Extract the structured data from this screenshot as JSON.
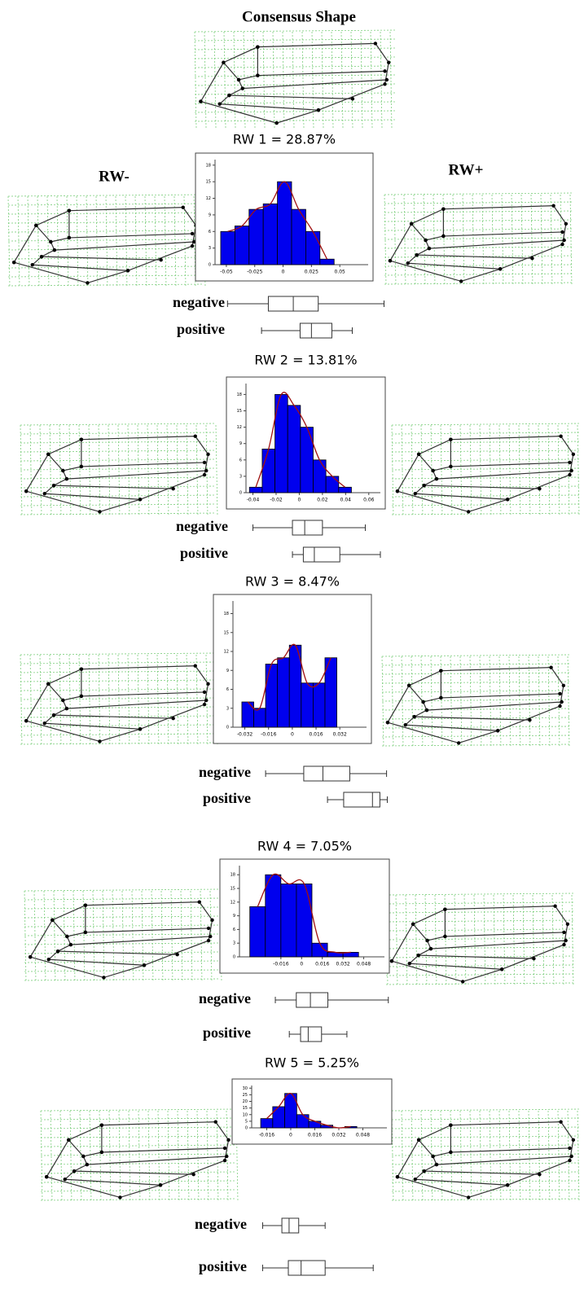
{
  "title": "Consensus Shape",
  "left_label": "RW-",
  "right_label": "RW+",
  "chart_data": [
    {
      "type": "histogram",
      "title": "RW 1 = 28.87%",
      "color": "#0000ee",
      "curve_color": "#a01010",
      "bins": [
        -0.055,
        -0.0425,
        -0.03,
        -0.0175,
        -0.005,
        0.0075,
        0.02,
        0.0325,
        0.045
      ],
      "values": [
        6,
        7,
        10,
        11,
        15,
        10,
        6,
        1
      ],
      "xlim": [
        -0.06,
        0.075
      ],
      "xticks": [
        -0.05,
        -0.025,
        0,
        0.025,
        0.05
      ],
      "ylim": [
        0,
        19
      ],
      "yticks": [
        0,
        3,
        6,
        9,
        12,
        15,
        18
      ],
      "boxplots": [
        {
          "name": "negative",
          "min": -0.049,
          "q1": -0.013,
          "median": 0.009,
          "q3": 0.031,
          "max": 0.089
        },
        {
          "name": "positive",
          "min": -0.019,
          "q1": 0.015,
          "median": 0.025,
          "q3": 0.043,
          "max": 0.061
        }
      ]
    },
    {
      "type": "histogram",
      "title": "RW 2 = 13.81%",
      "color": "#0000ee",
      "curve_color": "#a01010",
      "bins": [
        -0.043,
        -0.032,
        -0.021,
        -0.01,
        0.001,
        0.012,
        0.023,
        0.034,
        0.045
      ],
      "values": [
        1,
        8,
        18,
        16,
        12,
        6,
        3,
        1
      ],
      "xlim": [
        -0.046,
        0.07
      ],
      "xticks": [
        -0.04,
        -0.02,
        0,
        0.02,
        0.04,
        0.06
      ],
      "ylim": [
        0,
        20
      ],
      "yticks": [
        0,
        3,
        6,
        9,
        12,
        15,
        18
      ],
      "boxplots": [
        {
          "name": "negative",
          "min": -0.04,
          "q1": -0.0059,
          "median": 0.0047,
          "q3": 0.02,
          "max": 0.057
        },
        {
          "name": "positive",
          "min": -0.0059,
          "q1": 0.0035,
          "median": 0.013,
          "q3": 0.035,
          "max": 0.07
        }
      ]
    },
    {
      "type": "histogram",
      "title": "RW 3 = 8.47%",
      "color": "#0000ee",
      "curve_color": "#a01010",
      "bins": [
        -0.034,
        -0.026,
        -0.018,
        -0.01,
        -0.002,
        0.006,
        0.014,
        0.022,
        0.03
      ],
      "values": [
        4,
        3,
        10,
        11,
        13,
        7,
        7,
        11
      ],
      "xlim": [
        -0.04,
        0.05
      ],
      "xticks": [
        -0.032,
        -0.016,
        0,
        0.016,
        0.032
      ],
      "ylim": [
        0,
        20
      ],
      "yticks": [
        0,
        3,
        6,
        9,
        12,
        15,
        18
      ],
      "boxplots": [
        {
          "name": "negative",
          "min": -0.018,
          "q1": 0.0077,
          "median": 0.0206,
          "q3": 0.0387,
          "max": 0.0635
        },
        {
          "name": "positive",
          "min": 0.0237,
          "q1": 0.0346,
          "median": 0.054,
          "q3": 0.059,
          "max": 0.064
        }
      ]
    },
    {
      "type": "histogram",
      "title": "RW 4 = 7.05%",
      "color": "#0000ee",
      "curve_color": "#a01010",
      "bins": [
        -0.04,
        -0.028,
        -0.016,
        -0.004,
        0.008,
        0.02,
        0.032,
        0.044
      ],
      "values": [
        11,
        18,
        16,
        16,
        3,
        1,
        1
      ],
      "xlim": [
        -0.048,
        0.064
      ],
      "xticks": [
        -0.016,
        0,
        0.016,
        0.032,
        0.048
      ],
      "ylim": [
        0,
        20
      ],
      "yticks": [
        0,
        3,
        6,
        9,
        12,
        15,
        18
      ],
      "boxplots": [
        {
          "name": "negative",
          "min": -0.0203,
          "q1": -0.0041,
          "median": 0.0068,
          "q3": 0.0203,
          "max": 0.067
        },
        {
          "name": "positive",
          "min": -0.0095,
          "q1": -0.0008,
          "median": 0.0051,
          "q3": 0.0154,
          "max": 0.035
        }
      ]
    },
    {
      "type": "histogram",
      "title": "RW 5 = 5.25%",
      "color": "#0000ee",
      "curve_color": "#a01010",
      "bins": [
        -0.02,
        -0.012,
        -0.004,
        0.004,
        0.012,
        0.02,
        0.028,
        0.036,
        0.044
      ],
      "values": [
        7,
        16,
        26,
        10,
        5,
        2,
        0,
        1
      ],
      "xlim": [
        -0.026,
        0.064
      ],
      "xticks": [
        -0.016,
        0,
        0.016,
        0.032,
        0.048
      ],
      "ylim": [
        0,
        32
      ],
      "yticks": [
        0,
        5,
        10,
        15,
        20,
        25,
        30
      ],
      "boxplots": [
        {
          "name": "negative",
          "min": -0.0187,
          "q1": -0.0059,
          "median": -0.0011,
          "q3": 0.0053,
          "max": 0.0229
        },
        {
          "name": "positive",
          "min": -0.0187,
          "q1": -0.0016,
          "median": 0.0069,
          "q3": 0.0229,
          "max": 0.0549
        }
      ]
    }
  ]
}
